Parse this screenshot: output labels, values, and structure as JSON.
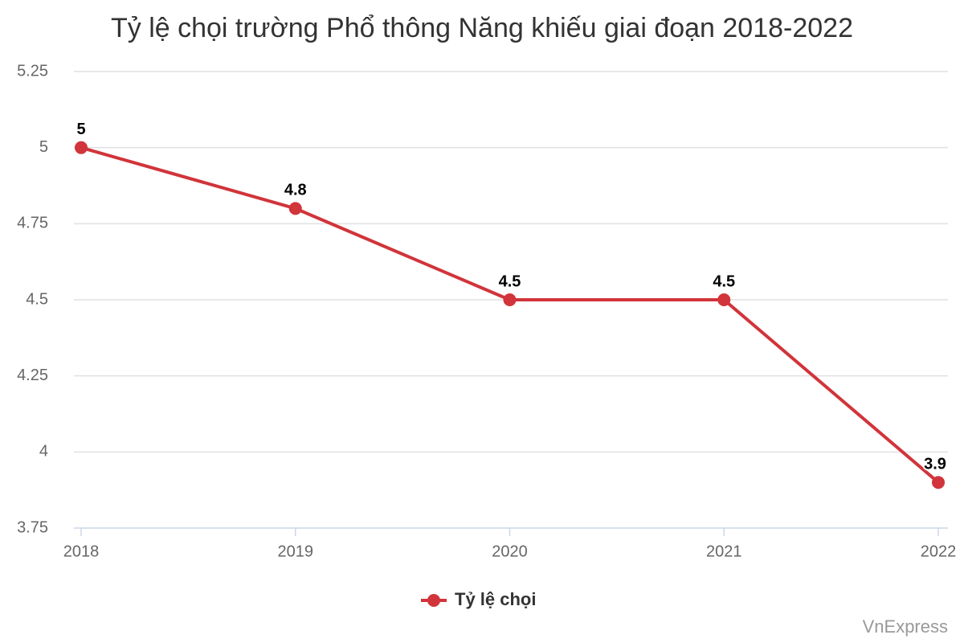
{
  "chart_data": {
    "type": "line",
    "title": "Tỷ lệ chọi trường Phổ thông Năng khiếu giai đoạn 2018-2022",
    "categories": [
      "2018",
      "2019",
      "2020",
      "2021",
      "2022"
    ],
    "series": [
      {
        "name": "Tỷ lệ chọi",
        "color": "#d1343a",
        "values": [
          5,
          4.8,
          4.5,
          4.5,
          3.9
        ]
      }
    ],
    "ylim": [
      3.75,
      5.25
    ],
    "yticks": [
      3.75,
      4,
      4.25,
      4.5,
      4.75,
      5,
      5.25
    ],
    "grid": true,
    "legend": "bottom",
    "credit": "VnExpress"
  }
}
